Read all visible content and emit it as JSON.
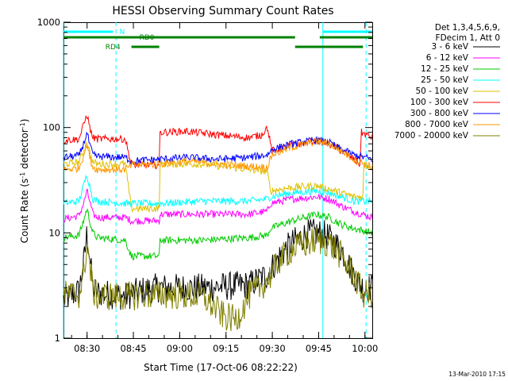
{
  "chart_data": {
    "type": "line",
    "title": "HESSI Observing Summary Count Rates",
    "xlabel": "Start Time (17-Oct-06 08:22:22)",
    "ylabel_main": "Count Rate (s",
    "ylabel_sup1": "-1",
    "ylabel_mid": " detector",
    "ylabel_sup2": "-1",
    "ylabel_end": ")",
    "yscale": "log",
    "ylim": [
      1,
      1000
    ],
    "xlim_minutes": [
      0,
      100
    ],
    "x_unit": "minutes after 08:22:22",
    "x_ticks": [
      {
        "label": "08:30",
        "minute": 7.63
      },
      {
        "label": "08:45",
        "minute": 22.63
      },
      {
        "label": "09:00",
        "minute": 37.63
      },
      {
        "label": "09:15",
        "minute": 52.63
      },
      {
        "label": "09:30",
        "minute": 67.63
      },
      {
        "label": "09:45",
        "minute": 82.63
      },
      {
        "label": "10:00",
        "minute": 97.63
      }
    ],
    "y_ticks": [
      {
        "label": "1",
        "value": 1
      },
      {
        "label": "10",
        "value": 10
      },
      {
        "label": "100",
        "value": 100
      },
      {
        "label": "1000",
        "value": 1000
      }
    ],
    "legend_header": [
      "Det 1,3,4,5,6,9,",
      "FDecim 1, Att 0"
    ],
    "legend_placement": "right",
    "series": [
      {
        "name": "3 - 6 keV",
        "color": "#000000",
        "points": [
          [
            0,
            2.3
          ],
          [
            5,
            2.8
          ],
          [
            6.5,
            5
          ],
          [
            7.6,
            10
          ],
          [
            8.5,
            6
          ],
          [
            9.5,
            3
          ],
          [
            11,
            2.7
          ],
          [
            20,
            2.5
          ],
          [
            25,
            2.8
          ],
          [
            30,
            3.0
          ],
          [
            45,
            3.0
          ],
          [
            60,
            3.2
          ],
          [
            66,
            4
          ],
          [
            70,
            6
          ],
          [
            74,
            8
          ],
          [
            79,
            9.8
          ],
          [
            82,
            10
          ],
          [
            85,
            9.5
          ],
          [
            90,
            7
          ],
          [
            94,
            4
          ],
          [
            97,
            3
          ],
          [
            100,
            3
          ]
        ]
      },
      {
        "name": "6 - 12 keV",
        "color": "#ff00ff",
        "points": [
          [
            0,
            13.5
          ],
          [
            5,
            14.5
          ],
          [
            6.5,
            19
          ],
          [
            7.6,
            25
          ],
          [
            8.5,
            20
          ],
          [
            9.5,
            15
          ],
          [
            11,
            14
          ],
          [
            20,
            14
          ],
          [
            22,
            13
          ],
          [
            31,
            13
          ],
          [
            31.2,
            15
          ],
          [
            45,
            15
          ],
          [
            60,
            15
          ],
          [
            66,
            16
          ],
          [
            67,
            19
          ],
          [
            74,
            21
          ],
          [
            82,
            22
          ],
          [
            86,
            21
          ],
          [
            90,
            18
          ],
          [
            94,
            16
          ],
          [
            100,
            14
          ]
        ]
      },
      {
        "name": "12 - 25 keV",
        "color": "#00cc00",
        "points": [
          [
            0,
            9
          ],
          [
            5,
            9.5
          ],
          [
            6.5,
            13
          ],
          [
            7.6,
            17
          ],
          [
            8.5,
            13
          ],
          [
            9.5,
            10
          ],
          [
            11,
            9
          ],
          [
            20,
            8.5
          ],
          [
            22,
            6
          ],
          [
            31,
            6
          ],
          [
            31.2,
            8.5
          ],
          [
            45,
            8.5
          ],
          [
            60,
            9
          ],
          [
            66,
            9.5
          ],
          [
            67,
            11
          ],
          [
            74,
            13
          ],
          [
            82,
            15
          ],
          [
            86,
            14
          ],
          [
            90,
            12
          ],
          [
            94,
            11
          ],
          [
            100,
            10
          ]
        ]
      },
      {
        "name": "25 - 50 keV",
        "color": "#00ffff",
        "points": [
          [
            0,
            19
          ],
          [
            5,
            20
          ],
          [
            6.5,
            28
          ],
          [
            7.6,
            36
          ],
          [
            8.5,
            28
          ],
          [
            9.5,
            21
          ],
          [
            11,
            20
          ],
          [
            20,
            19
          ],
          [
            22,
            19
          ],
          [
            31,
            19
          ],
          [
            45,
            20
          ],
          [
            60,
            20
          ],
          [
            66,
            21
          ],
          [
            67,
            22
          ],
          [
            74,
            24
          ],
          [
            82,
            25
          ],
          [
            86,
            24
          ],
          [
            90,
            22
          ],
          [
            94,
            20
          ],
          [
            100,
            20
          ]
        ]
      },
      {
        "name": "50 - 100 keV",
        "color": "#e0c000",
        "points": [
          [
            0,
            45
          ],
          [
            5,
            47
          ],
          [
            6.5,
            60
          ],
          [
            7.6,
            75
          ],
          [
            8.5,
            58
          ],
          [
            9.5,
            47
          ],
          [
            11,
            45
          ],
          [
            20,
            45
          ],
          [
            22,
            17
          ],
          [
            31,
            17
          ],
          [
            31.2,
            45
          ],
          [
            45,
            45
          ],
          [
            60,
            40
          ],
          [
            66,
            38
          ],
          [
            67,
            25
          ],
          [
            74,
            27
          ],
          [
            82,
            28
          ],
          [
            86,
            26
          ],
          [
            90,
            24
          ],
          [
            94,
            22
          ],
          [
            97,
            22
          ],
          [
            97.2,
            45
          ],
          [
            100,
            42
          ]
        ]
      },
      {
        "name": "100 - 300 keV",
        "color": "#ff0000",
        "points": [
          [
            0,
            75
          ],
          [
            5,
            78
          ],
          [
            6.5,
            105
          ],
          [
            7.6,
            135
          ],
          [
            8.5,
            100
          ],
          [
            9.5,
            80
          ],
          [
            11,
            78
          ],
          [
            20,
            78
          ],
          [
            22,
            44
          ],
          [
            31,
            44
          ],
          [
            31.2,
            90
          ],
          [
            40,
            92
          ],
          [
            50,
            85
          ],
          [
            60,
            80
          ],
          [
            64,
            85
          ],
          [
            66,
            100
          ],
          [
            67.5,
            60
          ],
          [
            74,
            68
          ],
          [
            82,
            75
          ],
          [
            86,
            70
          ],
          [
            90,
            60
          ],
          [
            94,
            50
          ],
          [
            96,
            45
          ],
          [
            96.5,
            90
          ],
          [
            100,
            80
          ]
        ]
      },
      {
        "name": "300 - 800 keV",
        "color": "#0000ff",
        "points": [
          [
            0,
            52
          ],
          [
            5,
            54
          ],
          [
            6.5,
            70
          ],
          [
            7.6,
            90
          ],
          [
            8.5,
            68
          ],
          [
            9.5,
            55
          ],
          [
            11,
            53
          ],
          [
            20,
            52
          ],
          [
            22,
            48
          ],
          [
            31,
            50
          ],
          [
            40,
            52
          ],
          [
            50,
            50
          ],
          [
            60,
            52
          ],
          [
            66,
            55
          ],
          [
            67.5,
            62
          ],
          [
            74,
            70
          ],
          [
            82,
            76
          ],
          [
            86,
            72
          ],
          [
            90,
            62
          ],
          [
            94,
            55
          ],
          [
            100,
            50
          ]
        ]
      },
      {
        "name": "800 - 7000 keV",
        "color": "#ff9900",
        "points": [
          [
            0,
            40
          ],
          [
            5,
            41
          ],
          [
            6.5,
            55
          ],
          [
            7.6,
            70
          ],
          [
            8.5,
            52
          ],
          [
            9.5,
            42
          ],
          [
            11,
            40
          ],
          [
            20,
            40
          ],
          [
            22,
            44
          ],
          [
            31,
            45
          ],
          [
            40,
            48
          ],
          [
            50,
            45
          ],
          [
            60,
            43
          ],
          [
            66,
            42
          ],
          [
            67.5,
            55
          ],
          [
            74,
            65
          ],
          [
            82,
            74
          ],
          [
            86,
            70
          ],
          [
            90,
            60
          ],
          [
            94,
            50
          ],
          [
            100,
            42
          ]
        ]
      },
      {
        "name": "7000 - 20000 keV",
        "color": "#808000",
        "points": [
          [
            0,
            2.6
          ],
          [
            5,
            2.6
          ],
          [
            6.5,
            4
          ],
          [
            7.6,
            8
          ],
          [
            8.5,
            5
          ],
          [
            9.5,
            2.8
          ],
          [
            11,
            2.5
          ],
          [
            20,
            2.5
          ],
          [
            30,
            2.6
          ],
          [
            45,
            2.5
          ],
          [
            52,
            1.6
          ],
          [
            56,
            1.5
          ],
          [
            60,
            2.5
          ],
          [
            66,
            3.5
          ],
          [
            70,
            5.5
          ],
          [
            74,
            7
          ],
          [
            82,
            8.5
          ],
          [
            86,
            8
          ],
          [
            90,
            6
          ],
          [
            94,
            4
          ],
          [
            97,
            2.6
          ],
          [
            100,
            2.6
          ]
        ]
      }
    ],
    "attenuator_bars": [
      {
        "color": "#00ffff",
        "label": "",
        "start": 0,
        "end": 16,
        "level": "top"
      },
      {
        "color": "#00ffff",
        "label": "",
        "start": 84,
        "end": 100,
        "level": "top"
      }
    ],
    "event_bars": [
      {
        "color": "#008000",
        "label": "RD0",
        "label_at": 27,
        "start": 0,
        "end": 75,
        "level": "row1"
      },
      {
        "color": "#008000",
        "label": "",
        "start": 83,
        "end": 100,
        "level": "row1"
      },
      {
        "color": "#008000",
        "label": "RD4",
        "label_at": 16,
        "start": 22,
        "end": 31,
        "level": "row2"
      },
      {
        "color": "#008000",
        "label": "",
        "start": 75,
        "end": 97,
        "level": "row2"
      }
    ],
    "marker_label": {
      "text": "N",
      "at": 19
    },
    "vlines_solid": [
      0,
      84
    ],
    "vlines_dashed": [
      17,
      98
    ],
    "grid": false
  },
  "footer": {
    "timestamp": "13-Mar-2010 17:15"
  }
}
